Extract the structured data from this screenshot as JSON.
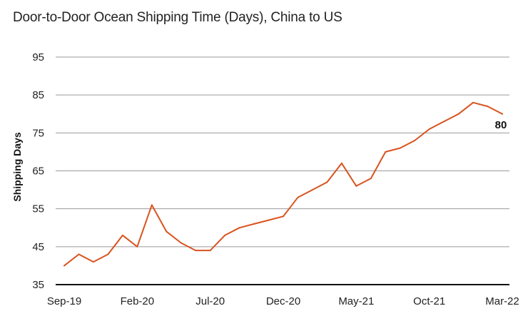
{
  "chart_data": {
    "type": "line",
    "title": "Door-to-Door Ocean Shipping Time (Days), China to US",
    "xlabel": "",
    "ylabel": "Shipping Days",
    "ylim": [
      35,
      95
    ],
    "yticks": [
      35,
      45,
      55,
      65,
      75,
      85,
      95
    ],
    "grid": true,
    "x_tick_labels": [
      "Sep-19",
      "Feb-20",
      "Jul-20",
      "Dec-20",
      "May-21",
      "Oct-21",
      "Mar-22"
    ],
    "x": [
      "Sep-19",
      "Oct-19",
      "Nov-19",
      "Dec-19",
      "Jan-20",
      "Feb-20",
      "Mar-20",
      "Apr-20",
      "May-20",
      "Jun-20",
      "Jul-20",
      "Aug-20",
      "Sep-20",
      "Oct-20",
      "Nov-20",
      "Dec-20",
      "Jan-21",
      "Feb-21",
      "Mar-21",
      "Apr-21",
      "May-21",
      "Jun-21",
      "Jul-21",
      "Aug-21",
      "Sep-21",
      "Oct-21",
      "Nov-21",
      "Dec-21",
      "Jan-22",
      "Feb-22",
      "Mar-22"
    ],
    "series": [
      {
        "name": "",
        "color": "#d9531e",
        "values": [
          40,
          43,
          41,
          43,
          48,
          45,
          56,
          49,
          46,
          44,
          44,
          48,
          50,
          51,
          52,
          53,
          58,
          60,
          62,
          67,
          61,
          63,
          70,
          71,
          73,
          76,
          78,
          80,
          83,
          82,
          80
        ]
      }
    ],
    "end_label": "80",
    "colors": {
      "line": "#d9531e",
      "grid": "#9a9a9a",
      "axis": "#111111",
      "text": "#222222"
    }
  }
}
